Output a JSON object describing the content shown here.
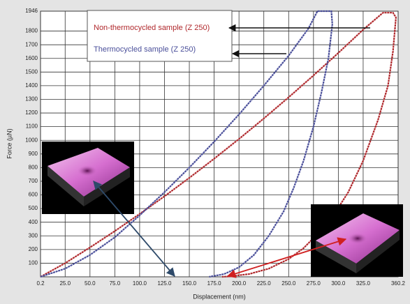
{
  "chart_data": {
    "type": "line",
    "x_label": "Displacement (nm)",
    "y_label": "Force (µN)",
    "xlim": [
      0.2,
      360.2
    ],
    "ylim": [
      0,
      1946
    ],
    "xticks": [
      0.2,
      {
        "value": 25,
        "label": "25.0"
      },
      {
        "value": 50,
        "label": "50.0"
      },
      {
        "value": 75,
        "label": "75.0"
      },
      {
        "value": 100,
        "label": "100.0"
      },
      {
        "value": 125,
        "label": "125.0"
      },
      {
        "value": 150,
        "label": "150.0"
      },
      {
        "value": 175,
        "label": "175.0"
      },
      {
        "value": 200,
        "label": "200.0"
      },
      {
        "value": 225,
        "label": "225.0"
      },
      {
        "value": 250,
        "label": "250.0"
      },
      {
        "value": 275,
        "label": "275.0"
      },
      {
        "value": 300,
        "label": "300.0"
      },
      {
        "value": 325,
        "label": "325.0"
      },
      360.2
    ],
    "yticks": [
      100,
      200,
      300,
      400,
      500,
      600,
      700,
      800,
      900,
      1000,
      1100,
      1200,
      1300,
      1400,
      1500,
      1600,
      1700,
      1800,
      1946
    ],
    "grid": true,
    "series": [
      {
        "name": "Non-thermocycled sample (Z 250)",
        "color": "#b0282c",
        "x": [
          0.2,
          25,
          50,
          75,
          100,
          125,
          150,
          175,
          200,
          225,
          250,
          275,
          300,
          325,
          345,
          355,
          358,
          355,
          350,
          340,
          325,
          310,
          295,
          280,
          265,
          250,
          230,
          210,
          190,
          183
        ],
        "values": [
          0,
          100,
          215,
          335,
          460,
          590,
          725,
          865,
          1010,
          1160,
          1315,
          1475,
          1640,
          1810,
          1935,
          1935,
          1900,
          1650,
          1400,
          1150,
          850,
          620,
          450,
          320,
          210,
          130,
          60,
          20,
          3,
          0
        ]
      },
      {
        "name": "Thermocycled sample (Z 250)",
        "color": "#4a4f9a",
        "x": [
          0.2,
          25,
          50,
          75,
          100,
          125,
          150,
          175,
          200,
          225,
          250,
          270,
          279,
          293,
          294,
          290,
          283,
          275,
          265,
          255,
          245,
          230,
          215,
          200,
          185,
          170
        ],
        "values": [
          0,
          60,
          160,
          290,
          450,
          620,
          800,
          990,
          1190,
          1400,
          1620,
          1820,
          1946,
          1946,
          1850,
          1600,
          1350,
          1100,
          850,
          650,
          480,
          300,
          160,
          70,
          20,
          0
        ]
      }
    ]
  }
}
